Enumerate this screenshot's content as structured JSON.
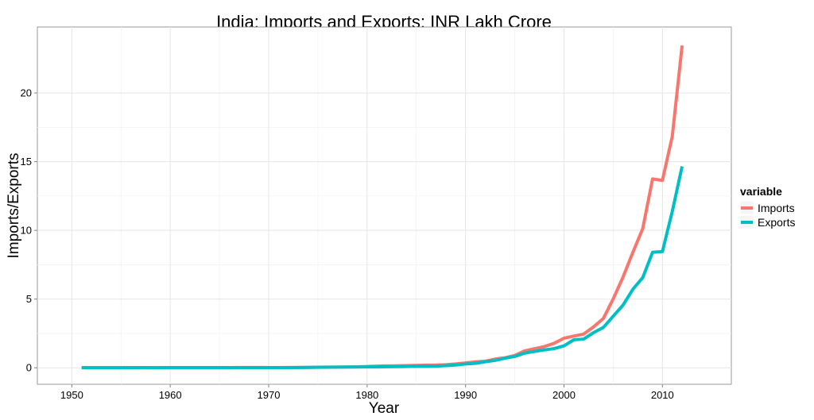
{
  "chart_data": {
    "type": "line",
    "title": "India: Imports and Exports: INR Lakh Crore",
    "xlabel": "Year",
    "ylabel": "Imports/Exports",
    "xlim": [
      1946.5,
      2017
    ],
    "ylim": [
      -1.2,
      24.8
    ],
    "x_ticks": [
      1950,
      1960,
      1970,
      1980,
      1990,
      2000,
      2010
    ],
    "y_ticks": [
      0,
      5,
      10,
      15,
      20
    ],
    "grid": true,
    "legend": {
      "title": "variable",
      "placement": "right"
    },
    "x": [
      1951,
      1952,
      1953,
      1954,
      1955,
      1956,
      1957,
      1958,
      1959,
      1960,
      1961,
      1962,
      1963,
      1964,
      1965,
      1966,
      1967,
      1968,
      1969,
      1970,
      1971,
      1972,
      1973,
      1974,
      1975,
      1976,
      1977,
      1978,
      1979,
      1980,
      1981,
      1982,
      1983,
      1984,
      1985,
      1986,
      1987,
      1988,
      1989,
      1990,
      1991,
      1992,
      1993,
      1994,
      1995,
      1996,
      1997,
      1998,
      1999,
      2000,
      2001,
      2002,
      2003,
      2004,
      2005,
      2006,
      2007,
      2008,
      2009,
      2010,
      2011,
      2012
    ],
    "series": [
      {
        "name": "Imports",
        "color": "#F8766D",
        "values": [
          0.006,
          0.009,
          0.006,
          0.006,
          0.007,
          0.008,
          0.011,
          0.009,
          0.009,
          0.011,
          0.011,
          0.011,
          0.012,
          0.013,
          0.014,
          0.014,
          0.02,
          0.02,
          0.018,
          0.016,
          0.016,
          0.018,
          0.019,
          0.03,
          0.045,
          0.052,
          0.051,
          0.06,
          0.068,
          0.091,
          0.125,
          0.136,
          0.142,
          0.158,
          0.171,
          0.196,
          0.2,
          0.222,
          0.282,
          0.353,
          0.432,
          0.479,
          0.633,
          0.731,
          0.899,
          1.227,
          1.389,
          1.542,
          1.783,
          2.152,
          2.309,
          2.452,
          2.972,
          3.591,
          5.01,
          6.606,
          8.406,
          10.123,
          13.745,
          13.637,
          16.835,
          23.455
        ]
      },
      {
        "name": "Exports",
        "color": "#00BFC4",
        "values": [
          0.006,
          0.007,
          0.005,
          0.005,
          0.006,
          0.006,
          0.006,
          0.006,
          0.006,
          0.006,
          0.007,
          0.007,
          0.007,
          0.008,
          0.008,
          0.008,
          0.012,
          0.012,
          0.014,
          0.014,
          0.015,
          0.016,
          0.02,
          0.025,
          0.033,
          0.04,
          0.051,
          0.054,
          0.057,
          0.064,
          0.067,
          0.078,
          0.088,
          0.097,
          0.116,
          0.109,
          0.125,
          0.157,
          0.202,
          0.277,
          0.325,
          0.44,
          0.536,
          0.697,
          0.827,
          1.064,
          1.189,
          1.301,
          1.397,
          1.596,
          2.036,
          2.09,
          2.553,
          2.934,
          3.754,
          4.563,
          5.716,
          6.558,
          8.407,
          8.455,
          11.37,
          14.654
        ]
      }
    ]
  }
}
